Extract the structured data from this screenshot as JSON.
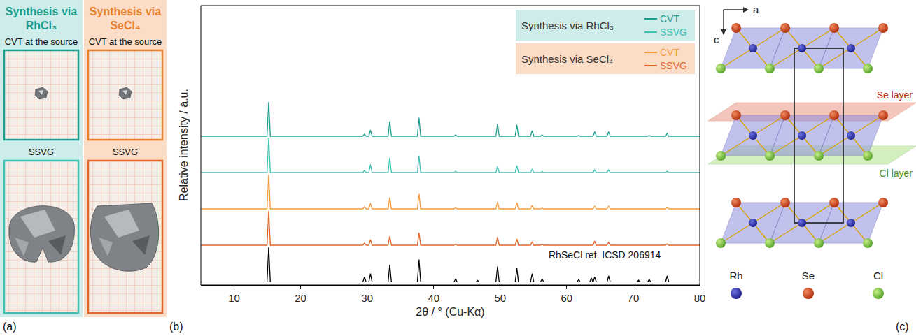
{
  "chart_data": {
    "type": "line",
    "x_label": "2θ / ° (Cu-Kα)",
    "y_label": "Relative intensity / a.u.",
    "x": [
      5,
      14.95,
      15.2,
      15.45,
      29.35,
      29.6,
      29.85,
      30.25,
      30.5,
      30.75,
      33.15,
      33.4,
      33.65,
      37.55,
      37.8,
      38.05,
      43.05,
      43.3,
      43.55,
      46.35,
      46.6,
      46.85,
      49.35,
      49.6,
      49.85,
      52.25,
      52.5,
      52.75,
      54.55,
      54.8,
      55.05,
      56.05,
      56.3,
      56.55,
      61.55,
      61.8,
      62.05,
      63.45,
      63.7,
      63.95,
      63.95,
      64.2,
      64.45,
      66.05,
      66.3,
      66.55,
      70.55,
      70.8,
      71.05,
      72.15,
      72.4,
      72.65,
      74.85,
      75.1,
      75.35,
      80
    ],
    "xlim": [
      5,
      80
    ],
    "xticks": [
      10,
      20,
      30,
      40,
      50,
      60,
      70,
      80
    ],
    "ylim": [
      0,
      100
    ],
    "tick_labels": "x",
    "grid": false,
    "legend": "upper right",
    "series": [
      {
        "name": "CVT",
        "group": "Synthesis via RhCl₃",
        "color": "#1f9e8f",
        "values": [
          2,
          2,
          100,
          2,
          2,
          8,
          2,
          2,
          20,
          2,
          2,
          45,
          2,
          2,
          55,
          2,
          2,
          6,
          2,
          2,
          3,
          2,
          2,
          38,
          2,
          2,
          35,
          2,
          2,
          18,
          2,
          2,
          6,
          2,
          2,
          4,
          2,
          2,
          2,
          2,
          2,
          15,
          2,
          2,
          15,
          2,
          2,
          2,
          2,
          2,
          4,
          2,
          2,
          10,
          2,
          2
        ]
      },
      {
        "name": "SSVG",
        "group": "Synthesis via RhCl₃",
        "color": "#3fc1b2",
        "values": [
          2,
          2,
          100,
          2,
          2,
          8,
          2,
          2,
          25,
          2,
          2,
          45,
          2,
          2,
          50,
          2,
          2,
          6,
          2,
          2,
          3,
          2,
          2,
          20,
          2,
          2,
          22,
          2,
          2,
          12,
          2,
          2,
          5,
          2,
          2,
          3,
          2,
          2,
          2,
          2,
          2,
          10,
          2,
          2,
          10,
          2,
          2,
          2,
          2,
          2,
          3,
          2,
          2,
          6,
          2,
          2
        ]
      },
      {
        "name": "CVT",
        "group": "Synthesis via SeCl₄",
        "color": "#f39a3c",
        "values": [
          2,
          2,
          100,
          2,
          2,
          8,
          2,
          2,
          18,
          2,
          2,
          35,
          2,
          2,
          45,
          2,
          2,
          5,
          2,
          2,
          3,
          2,
          2,
          22,
          2,
          2,
          20,
          2,
          2,
          12,
          2,
          2,
          4,
          2,
          2,
          3,
          2,
          2,
          2,
          2,
          2,
          10,
          2,
          2,
          10,
          2,
          2,
          2,
          2,
          2,
          3,
          2,
          2,
          6,
          2,
          2
        ]
      },
      {
        "name": "SSVG",
        "group": "Synthesis via SeCl₄",
        "color": "#e0662a",
        "values": [
          2,
          2,
          100,
          2,
          2,
          8,
          2,
          2,
          18,
          2,
          2,
          28,
          2,
          2,
          38,
          2,
          2,
          5,
          2,
          2,
          3,
          2,
          2,
          25,
          2,
          2,
          20,
          2,
          2,
          12,
          2,
          2,
          4,
          2,
          2,
          3,
          2,
          2,
          2,
          2,
          2,
          14,
          2,
          2,
          10,
          2,
          2,
          2,
          2,
          2,
          3,
          2,
          2,
          6,
          2,
          2
        ]
      },
      {
        "name": "RhSeCl ref. ICSD 206914",
        "color": "#000000",
        "values": [
          0,
          0,
          100,
          0,
          0,
          15,
          0,
          0,
          25,
          0,
          0,
          50,
          0,
          0,
          65,
          0,
          0,
          10,
          0,
          0,
          5,
          0,
          0,
          45,
          0,
          0,
          40,
          0,
          0,
          25,
          0,
          0,
          10,
          0,
          0,
          8,
          0,
          0,
          12,
          0,
          0,
          15,
          0,
          0,
          18,
          0,
          0,
          6,
          0,
          0,
          8,
          0,
          0,
          18,
          0,
          0
        ]
      }
    ]
  },
  "panel_labels": [
    "(a)",
    "(b)",
    "(c)"
  ],
  "panel_a": {
    "columns": [
      {
        "title": "Synthesis via RhCl₃",
        "color": "#1f9e8f",
        "photos": [
          "CVT at the source",
          "SSVG"
        ]
      },
      {
        "title": "Synthesis via SeCl₄",
        "color": "#e8812e",
        "photos": [
          "CVT at the source",
          "SSVG"
        ]
      }
    ]
  },
  "panel_c": {
    "axes": [
      "a",
      "c"
    ],
    "layers": [
      "Se layer",
      "Cl layer"
    ],
    "atoms": [
      "Rh",
      "Se",
      "Cl"
    ]
  }
}
